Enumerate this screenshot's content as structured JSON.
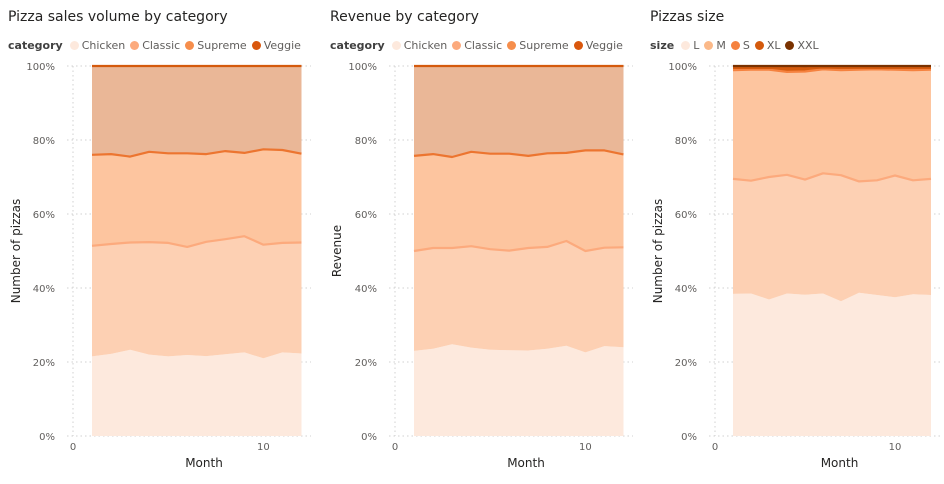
{
  "colors": {
    "chicken": "#fde9dd",
    "classic": "#fdd0b3",
    "supreme": "#f68e4c",
    "veggie": "#d9570d",
    "classic_line": "#fcaa7d",
    "supreme_line": "#ec7530",
    "veggie_line": "#d45a0d",
    "veggie_fill": "#eab797",
    "supreme_fill": "#fdc59f",
    "size_L": "#fde9dd",
    "size_M": "#fbb989",
    "size_S": "#f5823f",
    "size_XL": "#d45a0d",
    "size_XXL": "#7a3200"
  },
  "chart_data": [
    {
      "type": "area",
      "stacking": "percent",
      "title": "Pizza sales volume by category",
      "legend_title": "category",
      "legend_position": "top-left",
      "xlabel": "Month",
      "ylabel": "Number of pizzas",
      "xlim": [
        0,
        12.5
      ],
      "ylim": [
        0,
        100
      ],
      "xticks": [
        "0",
        "10"
      ],
      "yticks": [
        "0%",
        "20%",
        "40%",
        "60%",
        "80%",
        "100%"
      ],
      "grid": true,
      "x": [
        1,
        2,
        3,
        4,
        5,
        6,
        7,
        8,
        9,
        10,
        11,
        12
      ],
      "series": [
        {
          "name": "Chicken",
          "values": [
            21.5,
            22.2,
            23.3,
            22.0,
            21.5,
            21.9,
            21.6,
            22.1,
            22.6,
            21.0,
            22.6,
            22.3
          ]
        },
        {
          "name": "Classic",
          "values": [
            29.9,
            29.7,
            29.0,
            30.4,
            30.7,
            29.2,
            30.9,
            31.1,
            31.4,
            30.7,
            29.6,
            30.0
          ]
        },
        {
          "name": "Supreme",
          "values": [
            24.6,
            24.3,
            23.2,
            24.4,
            24.2,
            25.3,
            23.7,
            23.8,
            22.5,
            25.8,
            25.1,
            24.0
          ]
        },
        {
          "name": "Veggie",
          "values": [
            24.0,
            23.8,
            24.5,
            23.2,
            23.6,
            23.6,
            23.8,
            23.0,
            23.5,
            22.5,
            22.7,
            23.7
          ]
        }
      ]
    },
    {
      "type": "area",
      "stacking": "percent",
      "title": "Revenue by category",
      "legend_title": "category",
      "legend_position": "top-left",
      "xlabel": "Month",
      "ylabel": "Revenue",
      "xlim": [
        0,
        12.5
      ],
      "ylim": [
        0,
        100
      ],
      "xticks": [
        "0",
        "10"
      ],
      "yticks": [
        "0%",
        "20%",
        "40%",
        "60%",
        "80%",
        "100%"
      ],
      "grid": true,
      "x": [
        1,
        2,
        3,
        4,
        5,
        6,
        7,
        8,
        9,
        10,
        11,
        12
      ],
      "series": [
        {
          "name": "Chicken",
          "values": [
            23.0,
            23.6,
            24.8,
            23.9,
            23.3,
            23.2,
            23.1,
            23.6,
            24.4,
            22.6,
            24.3,
            24.0
          ]
        },
        {
          "name": "Classic",
          "values": [
            27.0,
            27.2,
            26.0,
            27.4,
            27.2,
            26.9,
            27.7,
            27.5,
            28.3,
            27.4,
            26.6,
            27.0
          ]
        },
        {
          "name": "Supreme",
          "values": [
            25.7,
            25.4,
            24.6,
            25.5,
            25.8,
            26.2,
            24.9,
            25.3,
            23.8,
            27.2,
            26.3,
            25.1
          ]
        },
        {
          "name": "Veggie",
          "values": [
            24.3,
            23.8,
            24.6,
            23.2,
            23.7,
            23.7,
            24.3,
            23.6,
            23.5,
            22.8,
            22.8,
            23.9
          ]
        }
      ]
    },
    {
      "type": "area",
      "stacking": "percent",
      "title": "Pizzas size",
      "legend_title": "size",
      "legend_position": "top-left",
      "xlabel": "Month",
      "ylabel": "Number of pizzas",
      "xlim": [
        0,
        12.5
      ],
      "ylim": [
        0,
        100
      ],
      "xticks": [
        "0",
        "10"
      ],
      "yticks": [
        "0%",
        "20%",
        "40%",
        "60%",
        "80%",
        "100%"
      ],
      "grid": true,
      "x": [
        1,
        2,
        3,
        4,
        5,
        6,
        7,
        8,
        9,
        10,
        11,
        12
      ],
      "series": [
        {
          "name": "L",
          "values": [
            38.4,
            38.5,
            36.9,
            38.5,
            38.2,
            38.5,
            36.4,
            38.7,
            38.1,
            37.5,
            38.3,
            38.1
          ]
        },
        {
          "name": "M",
          "values": [
            31.1,
            30.5,
            33.1,
            32.1,
            31.1,
            32.5,
            34.1,
            30.1,
            31.0,
            32.9,
            30.8,
            31.4
          ]
        },
        {
          "name": "S",
          "values": [
            29.4,
            30.0,
            29.0,
            27.8,
            29.2,
            28.1,
            28.4,
            30.2,
            30.0,
            28.6,
            29.8,
            29.5
          ]
        },
        {
          "name": "XL",
          "values": [
            0.6,
            0.5,
            0.5,
            1.1,
            0.9,
            0.5,
            0.6,
            0.5,
            0.4,
            0.5,
            0.6,
            0.5
          ]
        },
        {
          "name": "XXL",
          "values": [
            0.5,
            0.5,
            0.5,
            0.5,
            0.6,
            0.4,
            0.5,
            0.5,
            0.5,
            0.5,
            0.5,
            0.5
          ]
        }
      ]
    }
  ]
}
